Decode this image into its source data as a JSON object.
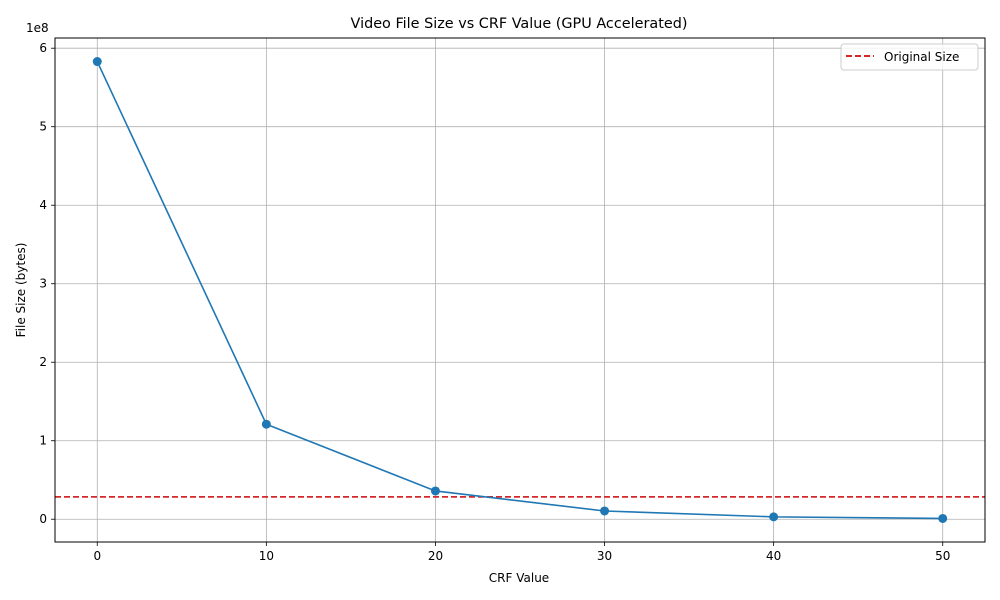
{
  "chart_data": {
    "type": "line",
    "title": "Video File Size vs CRF Value (GPU Accelerated)",
    "xlabel": "CRF Value",
    "ylabel": "File Size (bytes)",
    "y_offset_label": "1e8",
    "xlim": [
      -2.5,
      52.5
    ],
    "ylim": [
      -29000000,
      613000000
    ],
    "x_ticks": [
      0,
      10,
      20,
      30,
      40,
      50
    ],
    "y_ticks": [
      0,
      100000000,
      200000000,
      300000000,
      400000000,
      500000000,
      600000000
    ],
    "y_tick_labels": [
      "0",
      "1",
      "2",
      "3",
      "4",
      "5",
      "6"
    ],
    "grid": true,
    "legend_position": "top-right",
    "series": [
      {
        "x": [
          0,
          10,
          20,
          30,
          40,
          50
        ],
        "values": [
          583000000,
          121000000,
          36000000,
          10500000,
          3000000,
          1000000
        ],
        "color": "#1f77b4",
        "marker": "circle"
      }
    ],
    "reference_lines": [
      {
        "name": "Original Size",
        "y": 28500000,
        "color": "#d62728",
        "style": "dashed"
      }
    ]
  }
}
